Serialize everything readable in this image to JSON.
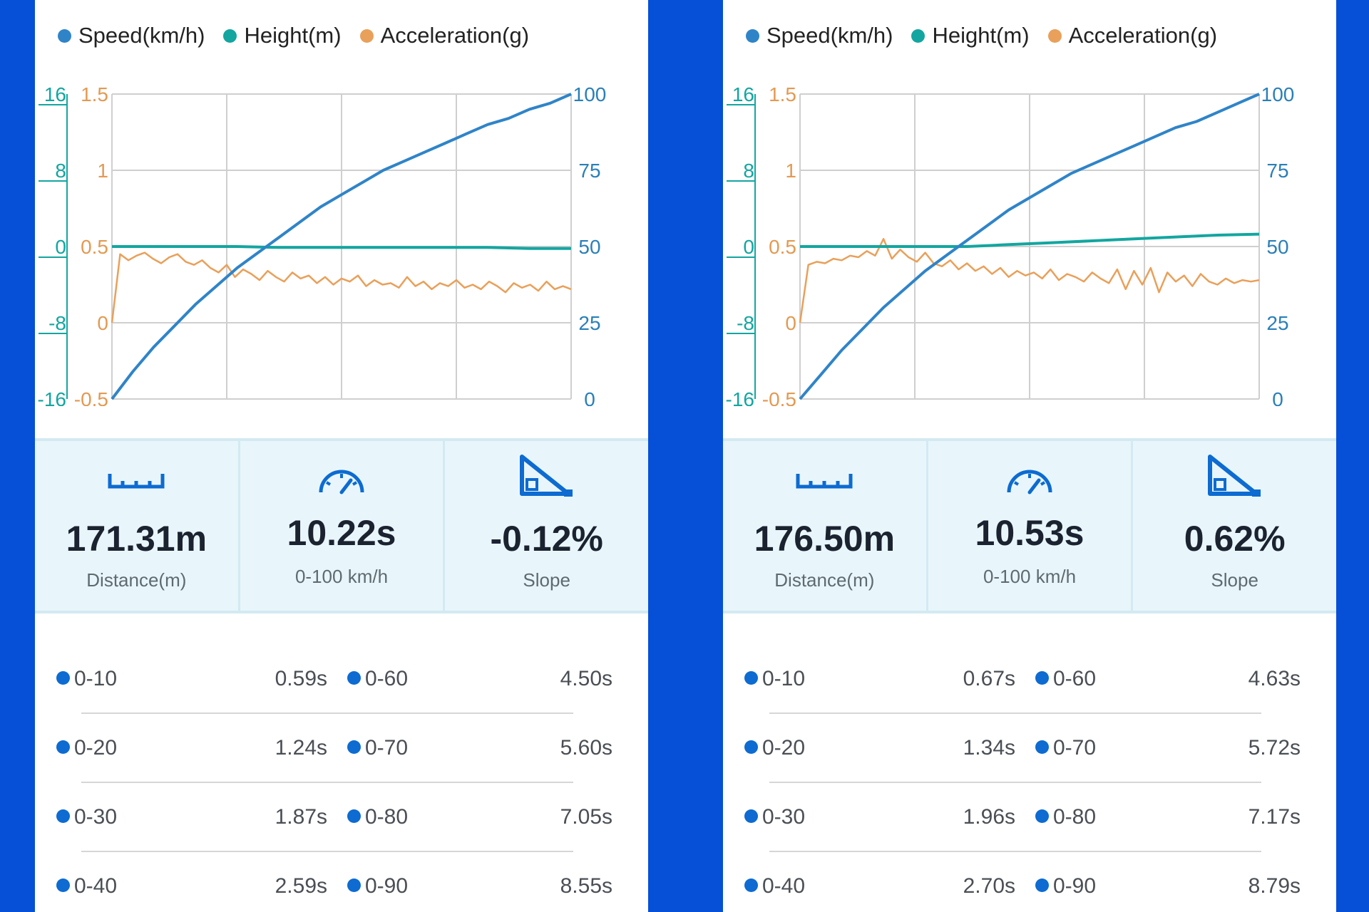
{
  "colors": {
    "background": "#0650d8",
    "speed": "#2f84c8",
    "height": "#13a6a0",
    "acceleration": "#e9a05a",
    "accent": "#0d6bd1"
  },
  "panels": [
    {
      "legend": [
        {
          "label": "Speed(km/h)",
          "color": "#2f84c8"
        },
        {
          "label": "Height(m)",
          "color": "#13a6a0"
        },
        {
          "label": "Acceleration(g)",
          "color": "#e9a05a"
        }
      ],
      "chart_data": {
        "type": "line",
        "x_range": [
          0,
          10.22
        ],
        "axes": {
          "height_ticks": [
            "16",
            "8",
            "0",
            "-8",
            "-16"
          ],
          "acceleration_ticks": [
            "1.5",
            "1",
            "0.5",
            "0",
            "-0.5"
          ],
          "speed_ticks": [
            "100",
            "75",
            "50",
            "25",
            "0"
          ],
          "height_range": [
            -16,
            16
          ],
          "acceleration_range": [
            -0.5,
            1.5
          ],
          "speed_range": [
            0,
            100
          ]
        },
        "grid": true,
        "series": [
          {
            "name": "Speed(km/h)",
            "color": "#2f84c8",
            "values": [
              0,
              9,
              17,
              24,
              31,
              37,
              43,
              48,
              53,
              58,
              63,
              67,
              71,
              75,
              78,
              81,
              84,
              87,
              90,
              92,
              95,
              97,
              100
            ]
          },
          {
            "name": "Height(m)",
            "color": "#13a6a0",
            "values": [
              0,
              0,
              0,
              0,
              -0.1,
              -0.1,
              -0.1,
              -0.1,
              -0.1,
              -0.1,
              -0.2,
              -0.2
            ]
          },
          {
            "name": "Acceleration(g)",
            "color": "#e9a05a",
            "values": [
              0,
              0.45,
              0.41,
              0.44,
              0.46,
              0.42,
              0.39,
              0.43,
              0.45,
              0.4,
              0.38,
              0.41,
              0.36,
              0.33,
              0.38,
              0.3,
              0.35,
              0.32,
              0.28,
              0.34,
              0.3,
              0.27,
              0.33,
              0.29,
              0.31,
              0.26,
              0.3,
              0.25,
              0.29,
              0.27,
              0.31,
              0.24,
              0.28,
              0.25,
              0.26,
              0.23,
              0.3,
              0.24,
              0.27,
              0.22,
              0.26,
              0.24,
              0.28,
              0.23,
              0.25,
              0.22,
              0.27,
              0.24,
              0.2,
              0.26,
              0.23,
              0.25,
              0.21,
              0.27,
              0.22,
              0.24,
              0.22
            ]
          }
        ]
      },
      "stats": [
        {
          "icon": "ruler-icon",
          "value": "171.31m",
          "label": "Distance(m)"
        },
        {
          "icon": "speedometer-icon",
          "value": "10.22s",
          "label": "0-100 km/h"
        },
        {
          "icon": "slope-icon",
          "value": "-0.12%",
          "label": "Slope"
        }
      ],
      "times": [
        {
          "range_a": "0-10",
          "val_a": "0.59s",
          "range_b": "0-60",
          "val_b": "4.50s"
        },
        {
          "range_a": "0-20",
          "val_a": "1.24s",
          "range_b": "0-70",
          "val_b": "5.60s"
        },
        {
          "range_a": "0-30",
          "val_a": "1.87s",
          "range_b": "0-80",
          "val_b": "7.05s"
        },
        {
          "range_a": "0-40",
          "val_a": "2.59s",
          "range_b": "0-90",
          "val_b": "8.55s"
        }
      ]
    },
    {
      "legend": [
        {
          "label": "Speed(km/h)",
          "color": "#2f84c8"
        },
        {
          "label": "Height(m)",
          "color": "#13a6a0"
        },
        {
          "label": "Acceleration(g)",
          "color": "#e9a05a"
        }
      ],
      "chart_data": {
        "type": "line",
        "x_range": [
          0,
          10.53
        ],
        "axes": {
          "height_ticks": [
            "16",
            "8",
            "0",
            "-8",
            "-16"
          ],
          "acceleration_ticks": [
            "1.5",
            "1",
            "0.5",
            "0",
            "-0.5"
          ],
          "speed_ticks": [
            "100",
            "75",
            "50",
            "25",
            "0"
          ],
          "height_range": [
            -16,
            16
          ],
          "acceleration_range": [
            -0.5,
            1.5
          ],
          "speed_range": [
            0,
            100
          ]
        },
        "grid": true,
        "series": [
          {
            "name": "Speed(km/h)",
            "color": "#2f84c8",
            "values": [
              0,
              8,
              16,
              23,
              30,
              36,
              42,
              47,
              52,
              57,
              62,
              66,
              70,
              74,
              77,
              80,
              83,
              86,
              89,
              91,
              94,
              97,
              100
            ]
          },
          {
            "name": "Height(m)",
            "color": "#13a6a0",
            "values": [
              0,
              0,
              0,
              0,
              0,
              0.2,
              0.4,
              0.6,
              0.8,
              1.0,
              1.2,
              1.3
            ]
          },
          {
            "name": "Acceleration(g)",
            "color": "#e9a05a",
            "values": [
              0,
              0.38,
              0.4,
              0.39,
              0.42,
              0.41,
              0.44,
              0.43,
              0.47,
              0.44,
              0.55,
              0.42,
              0.48,
              0.43,
              0.4,
              0.46,
              0.39,
              0.37,
              0.41,
              0.35,
              0.39,
              0.34,
              0.37,
              0.32,
              0.36,
              0.3,
              0.34,
              0.31,
              0.33,
              0.29,
              0.35,
              0.28,
              0.32,
              0.3,
              0.27,
              0.33,
              0.29,
              0.26,
              0.35,
              0.22,
              0.34,
              0.25,
              0.36,
              0.2,
              0.33,
              0.27,
              0.31,
              0.24,
              0.32,
              0.27,
              0.25,
              0.29,
              0.26,
              0.28,
              0.27,
              0.28
            ]
          }
        ]
      },
      "stats": [
        {
          "icon": "ruler-icon",
          "value": "176.50m",
          "label": "Distance(m)"
        },
        {
          "icon": "speedometer-icon",
          "value": "10.53s",
          "label": "0-100 km/h"
        },
        {
          "icon": "slope-icon",
          "value": "0.62%",
          "label": "Slope"
        }
      ],
      "times": [
        {
          "range_a": "0-10",
          "val_a": "0.67s",
          "range_b": "0-60",
          "val_b": "4.63s"
        },
        {
          "range_a": "0-20",
          "val_a": "1.34s",
          "range_b": "0-70",
          "val_b": "5.72s"
        },
        {
          "range_a": "0-30",
          "val_a": "1.96s",
          "range_b": "0-80",
          "val_b": "7.17s"
        },
        {
          "range_a": "0-40",
          "val_a": "2.70s",
          "range_b": "0-90",
          "val_b": "8.79s"
        }
      ]
    }
  ]
}
